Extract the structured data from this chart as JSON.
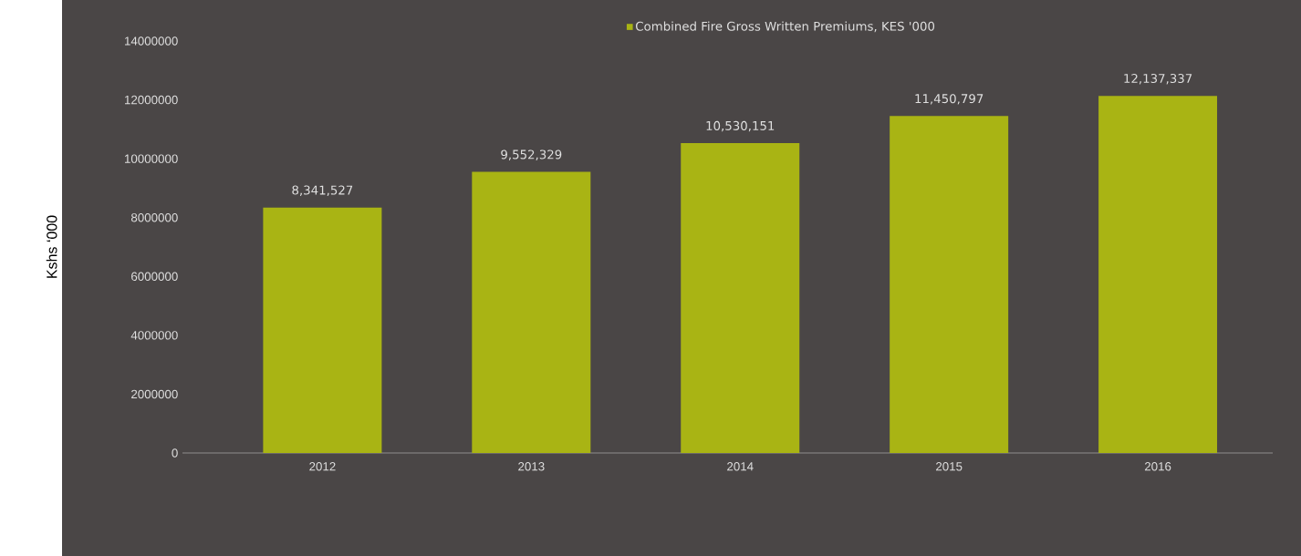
{
  "chart_data": {
    "type": "bar",
    "ylabel": "Kshs ‘000",
    "categories": [
      "2012",
      "2013",
      "2014",
      "2015",
      "2016"
    ],
    "series": [
      {
        "name": "Combined Fire Gross Written Premiums, KES '000",
        "color": "#a9b414",
        "values": [
          8341527,
          9552329,
          10530151,
          11450797,
          12137337
        ],
        "value_labels": [
          "8,341,527",
          "9,552,329",
          "10,530,151",
          "11,450,797",
          "12,137,337"
        ]
      }
    ],
    "ylim": [
      0,
      14000000
    ],
    "yticks": [
      0,
      2000000,
      4000000,
      6000000,
      8000000,
      10000000,
      12000000,
      14000000
    ],
    "grid": false,
    "legend": "top"
  }
}
